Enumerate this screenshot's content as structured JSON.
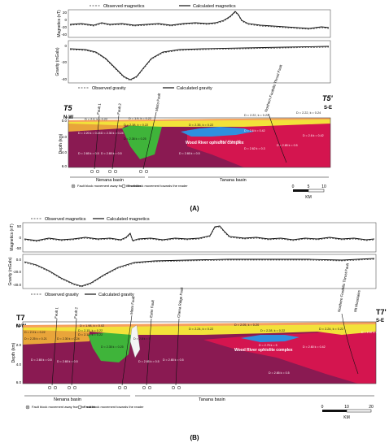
{
  "panel_a": {
    "legend_top": {
      "observed": "Observed magnetics",
      "calculated": "Calculated magnetics"
    },
    "mag_ylabel": "Magnetics (nT)",
    "mag_ticks": [
      "20",
      "0",
      "-20",
      "-40"
    ],
    "grav_ylabel": "Gravity (mGals)",
    "grav_ticks": [
      "0",
      "-20",
      "-40"
    ],
    "legend_bottom": {
      "observed": "Observed gravity",
      "calculated": "Calculated gravity"
    },
    "left_label": "T5",
    "left_dir": "N-W",
    "right_label": "T5'",
    "right_dir": "S-E",
    "depth_label": "Depth (km)",
    "depth_ticks": [
      "0.0",
      "2.0",
      "4.0",
      "6.0"
    ],
    "faults": [
      "Fault 1",
      "Fault 2",
      "Minto Fault",
      "Northern Foothills Thrust Fault"
    ],
    "complex_label": "Wood River ophiolite complex",
    "blocks": [
      "D = 2.0, k = 0.22",
      "D = 1.9, k = 0.22",
      "D = 2.22, k = 0.22",
      "D = 2.22, k = 0.24",
      "D = 2.38, k = 0.22",
      "D = 2.35, k = 0.22",
      "D = 2.20 k = 0.24",
      "D = 2.30 k = 0.24",
      "D = 2.38 k = 0.25",
      "D = 2.65 k = 0.5",
      "D = 2.65 k = 0.5",
      "D = 2.65 k = 0.5",
      "D = 2.63 k = 0.5",
      "D = 2.6 k = 0.42",
      "D = 2.65 k = 0.5",
      "D = 2.62 k = 0.3",
      "D = 2.6 k = 0.42"
    ],
    "basin_left": "Nenana basin",
    "basin_right": "Tanana basin",
    "fault_legend_away": "Fault block movement away from the reader",
    "fault_legend_towards": "Fault block movement towards the reader",
    "scale_ticks": [
      "0",
      "5",
      "10"
    ],
    "scale_unit": "KM",
    "caption": "(A)"
  },
  "panel_b": {
    "legend_top": {
      "observed": "Observed magnetics",
      "calculated": "Calculated magnetics"
    },
    "mag_ylabel": "Magnetics (nT)",
    "mag_ticks": [
      "50",
      "0",
      "-50"
    ],
    "grav_ylabel": "Gravity (mGals)",
    "grav_ticks": [
      "0.0",
      "-20.0",
      "-40.0"
    ],
    "legend_bottom": {
      "observed": "Observed gravity",
      "calculated": "Calculated gravity"
    },
    "left_label": "T7",
    "left_dir": "N-W",
    "right_label": "T7'",
    "right_dir": "S-E",
    "depth_label": "Depth (km)",
    "depth_ticks": [
      "0.0",
      "2.0",
      "4.0",
      "6.0"
    ],
    "faults": [
      "Fault 1",
      "Fault 2",
      "Minto Fault",
      "Ester Fault",
      "Chena Ridge Fault",
      "Northern Foothills Thrust Fault",
      "Mt Mountains"
    ],
    "complex_label": "Wood River ophiolite complex",
    "blocks": [
      "D = 1.98, k = 0.02",
      "D = 2.15, k = 0.22",
      "D = 2.15, k = 0.22",
      "D = 2.05, k = 0.20",
      "D = 2.24, k = 0.22",
      "D = 2.28, k = 0.22",
      "D = 2.24, k = 0.22",
      "D = 2.0 k = 0.22",
      "D = 2.25 k = 0.21",
      "D = 2.30 k = 0.24",
      "D = 2.35 k = 0.25",
      "D = 2.8 k = 5",
      "D = 2.79 k = 5",
      "D = 2.60 k = 0.42",
      "D = 2.57 k = 0.4",
      "D = 2.65 k = 0.5",
      "D = 2.65 k = 0.5",
      "D = 2.65 k = 0.5",
      "D = 2.65 k = 0.5",
      "D = 2.65 k = 0.5"
    ],
    "basin_left": "Nenana basin",
    "basin_right": "Tanana basin",
    "fault_legend_away": "Fault block movement away from the reader",
    "fault_legend_towards": "Fault block movement towards the reader",
    "scale_ticks": [
      "0",
      "10",
      "20"
    ],
    "scale_unit": "KM",
    "caption": "(B)"
  }
}
